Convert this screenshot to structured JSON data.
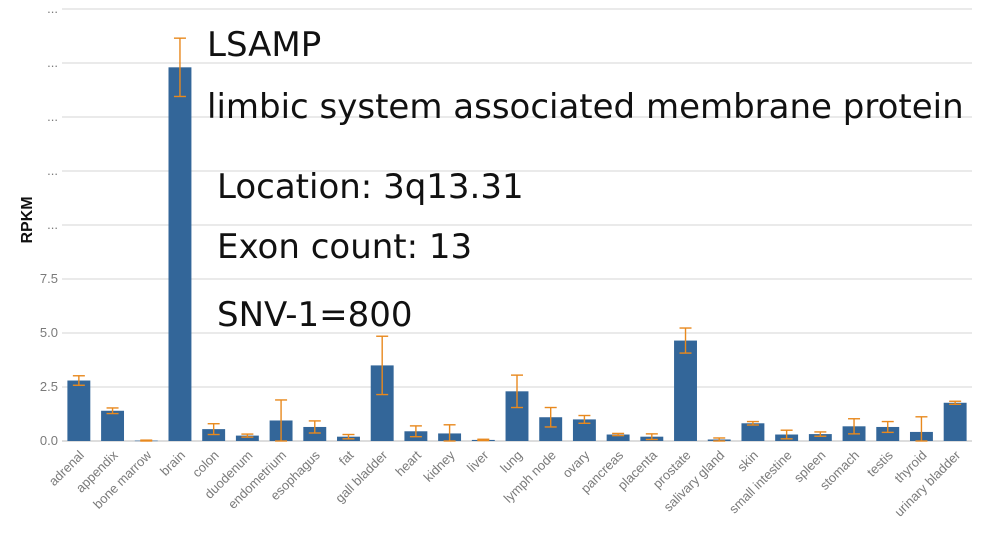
{
  "chart_data": {
    "type": "bar",
    "ylabel": "RPKM",
    "y_tick_labels": [
      "0.0",
      "2.5",
      "5.0",
      "7.5",
      "...",
      "...",
      "...",
      "...",
      "..."
    ],
    "y_tick_values": [
      0,
      2.5,
      5,
      7.5,
      10,
      12.5,
      15,
      17.5,
      20
    ],
    "ylim": [
      0,
      20
    ],
    "grid": true,
    "bar_color": "#336699",
    "error_color": "#e8891e",
    "categories": [
      "adrenal",
      "appendix",
      "bone marrow",
      "brain",
      "colon",
      "duodenum",
      "endometrium",
      "esophagus",
      "fat",
      "gall bladder",
      "heart",
      "kidney",
      "liver",
      "lung",
      "lymph node",
      "ovary",
      "pancreas",
      "placenta",
      "prostate",
      "salivary gland",
      "skin",
      "small intestine",
      "spleen",
      "stomach",
      "testis",
      "thyroid",
      "urinary bladder"
    ],
    "values": [
      2.8,
      1.4,
      0.02,
      17.3,
      0.55,
      0.25,
      0.95,
      0.65,
      0.2,
      3.5,
      0.45,
      0.35,
      0.05,
      2.3,
      1.1,
      1.0,
      0.3,
      0.2,
      4.65,
      0.07,
      0.82,
      0.3,
      0.32,
      0.68,
      0.65,
      0.42,
      1.77
    ],
    "errors": [
      0.22,
      0.13,
      0.02,
      1.35,
      0.25,
      0.07,
      0.95,
      0.28,
      0.1,
      1.35,
      0.25,
      0.4,
      0.03,
      0.75,
      0.45,
      0.18,
      0.05,
      0.13,
      0.58,
      0.07,
      0.08,
      0.2,
      0.1,
      0.35,
      0.25,
      0.7,
      0.07
    ],
    "annotations": {
      "gene_symbol": "LSAMP",
      "gene_name": "limbic system associated membrane protein",
      "location": "Location: 3q13.31",
      "exon_count": "Exon count: 13",
      "snv": "SNV-1=800"
    }
  }
}
